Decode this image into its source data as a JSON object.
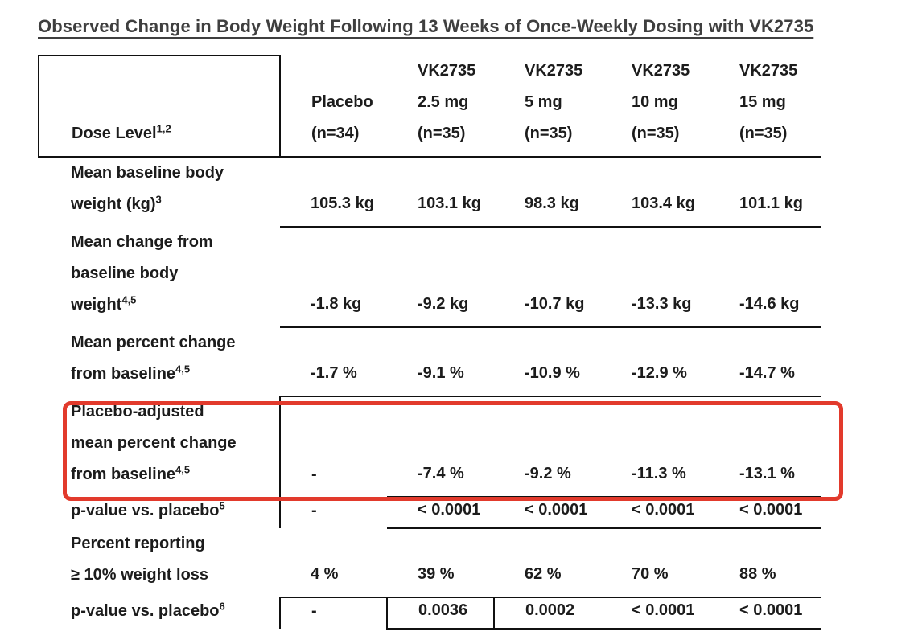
{
  "chart_data": {
    "type": "table",
    "title": "Observed Change in Body Weight Following 13 Weeks of Once-Weekly Dosing with VK2735",
    "corner_label": {
      "text": "Dose Level",
      "sup": "1,2"
    },
    "columns": [
      {
        "name": "Placebo (n=34)",
        "lines": [
          "Placebo",
          "(n=34)"
        ]
      },
      {
        "name": "VK2735 2.5 mg (n=35)",
        "lines": [
          "VK2735",
          "2.5 mg",
          "(n=35)"
        ]
      },
      {
        "name": "VK2735 5 mg (n=35)",
        "lines": [
          "VK2735",
          "5 mg",
          "(n=35)"
        ]
      },
      {
        "name": "VK2735 10 mg (n=35)",
        "lines": [
          "VK2735",
          "10 mg",
          "(n=35)"
        ]
      },
      {
        "name": "VK2735 15 mg (n=35)",
        "lines": [
          "VK2735",
          "15 mg",
          "(n=35)"
        ]
      }
    ],
    "rows": [
      {
        "label_lines": [
          "Mean baseline body",
          "weight (kg)"
        ],
        "sup": "3",
        "values": [
          "105.3 kg",
          "103.1 kg",
          "98.3 kg",
          "103.4 kg",
          "101.1 kg"
        ]
      },
      {
        "label_lines": [
          "Mean change from",
          "baseline body",
          "weight"
        ],
        "sup": "4,5",
        "values": [
          "-1.8 kg",
          "-9.2 kg",
          "-10.7 kg",
          "-13.3 kg",
          "-14.6 kg"
        ]
      },
      {
        "label_lines": [
          "Mean percent change",
          "from baseline"
        ],
        "sup": "4,5",
        "values": [
          "-1.7 %",
          "-9.1 %",
          "-10.9 %",
          "-12.9 %",
          "-14.7 %"
        ]
      },
      {
        "label_lines": [
          "Placebo-adjusted",
          "mean percent change",
          "from baseline"
        ],
        "sup": "4,5",
        "values": [
          "-",
          "-7.4 %",
          "-9.2 %",
          "-11.3 %",
          "-13.1 %"
        ],
        "highlighted": true
      },
      {
        "label_lines": [
          "p-value vs. placebo"
        ],
        "sup": "5",
        "values": [
          "-",
          "< 0.0001",
          "< 0.0001",
          "< 0.0001",
          "< 0.0001"
        ]
      },
      {
        "label_lines": [
          "Percent reporting",
          "≥ 10% weight loss"
        ],
        "sup": "",
        "values": [
          "4 %",
          "39 %",
          "62 %",
          "70 %",
          "88 %"
        ]
      },
      {
        "label_lines": [
          "p-value vs. placebo"
        ],
        "sup": "6",
        "values": [
          "-",
          "0.0036",
          "0.0002",
          "< 0.0001",
          "< 0.0001"
        ]
      }
    ],
    "highlight": {
      "row_index": 3,
      "color": "#e23a2c"
    }
  }
}
